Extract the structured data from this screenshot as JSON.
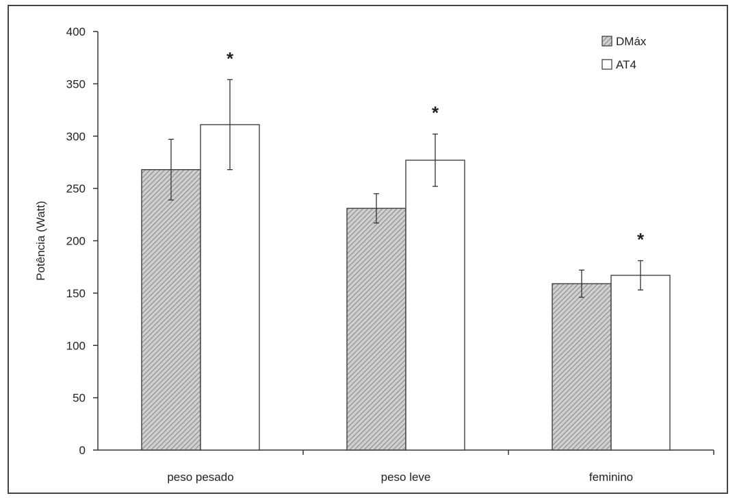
{
  "chart_data": {
    "type": "bar",
    "categories": [
      "peso pesado",
      "peso leve",
      "feminino"
    ],
    "series": [
      {
        "name": "DMáx",
        "values": [
          268,
          231,
          159
        ],
        "errors": [
          29,
          14,
          13
        ],
        "pattern": "hatched"
      },
      {
        "name": "AT4",
        "values": [
          311,
          277,
          167
        ],
        "errors": [
          43,
          25,
          14
        ],
        "pattern": "white"
      }
    ],
    "significance_markers": [
      "*",
      "*",
      "*"
    ],
    "ylabel": "Potência (Watt)",
    "xlabel": "",
    "title": "",
    "ylim": [
      0,
      400
    ],
    "yticks": [
      0,
      50,
      100,
      150,
      200,
      250,
      300,
      350,
      400
    ],
    "grid": false,
    "legend_position": "top-right",
    "colors": {
      "bar_edge": "#333333",
      "hatch": "#8a8a8a",
      "axis": "#333333",
      "background": "#ffffff"
    }
  }
}
